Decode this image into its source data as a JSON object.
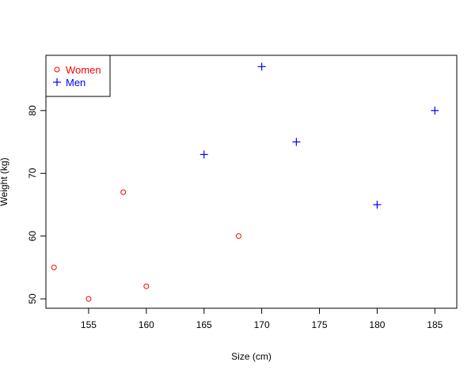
{
  "chart_data": {
    "type": "scatter",
    "title": "",
    "xlabel": "Size (cm)",
    "ylabel": "Weight (kg)",
    "xlim": [
      151.3,
      186.9
    ],
    "ylim": [
      48.5,
      88.8
    ],
    "xticks": [
      155,
      160,
      165,
      170,
      175,
      180,
      185
    ],
    "yticks": [
      50,
      60,
      70,
      80
    ],
    "grid": false,
    "legend_position": "top-left",
    "series": [
      {
        "name": "Women",
        "marker": "circle",
        "color": "#ff0000",
        "points": [
          {
            "x": 152,
            "y": 55
          },
          {
            "x": 155,
            "y": 50
          },
          {
            "x": 158,
            "y": 67
          },
          {
            "x": 160,
            "y": 52
          },
          {
            "x": 168,
            "y": 60
          }
        ]
      },
      {
        "name": "Men",
        "marker": "plus",
        "color": "#0000ff",
        "points": [
          {
            "x": 165,
            "y": 73
          },
          {
            "x": 170,
            "y": 87
          },
          {
            "x": 173,
            "y": 75
          },
          {
            "x": 180,
            "y": 65
          },
          {
            "x": 185,
            "y": 80
          }
        ]
      }
    ]
  }
}
